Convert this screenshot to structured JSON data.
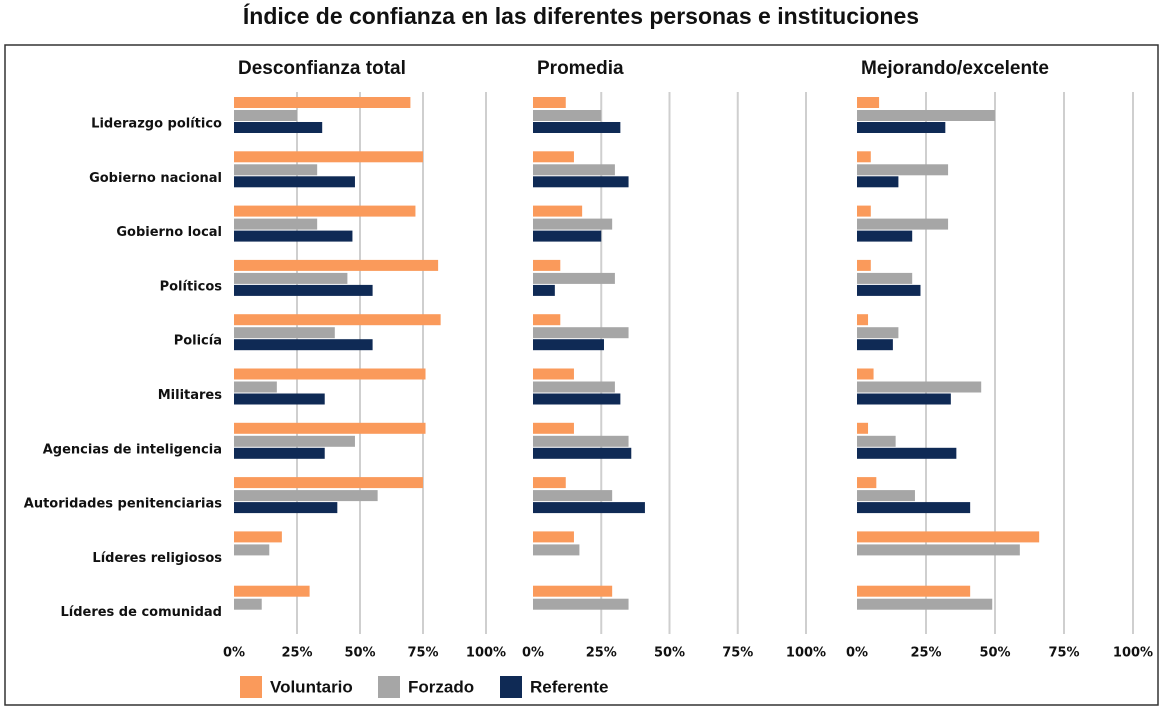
{
  "chart_data": {
    "type": "bar",
    "orientation": "horizontal",
    "title": "Índice de confianza en las diferentes personas e instituciones",
    "categories": [
      "Liderazgo político",
      "Gobierno nacional",
      "Gobierno local",
      "Políticos",
      "Policía",
      "Militares",
      "Agencias de inteligencia",
      "Autoridades penitenciarias",
      "Líderes religiosos",
      "Líderes de comunidad"
    ],
    "series": [
      {
        "name": "Voluntario",
        "color": "#fa9a5b"
      },
      {
        "name": "Forzado",
        "color": "#a6a6a6"
      },
      {
        "name": "Referente",
        "color": "#0f2a55"
      }
    ],
    "xlim": [
      0,
      100
    ],
    "xticks": [
      {
        "value": 0,
        "label": "0%"
      },
      {
        "value": 25,
        "label": "25%"
      },
      {
        "value": 50,
        "label": "50%"
      },
      {
        "value": 75,
        "label": "75%"
      },
      {
        "value": 100,
        "label": "100%"
      }
    ],
    "grid": true,
    "legend": "bottom",
    "panels": [
      {
        "title": "Desconfianza total",
        "values": [
          [
            70,
            75,
            72,
            81,
            82,
            76,
            76,
            75,
            19,
            30
          ],
          [
            25,
            33,
            33,
            45,
            40,
            17,
            48,
            57,
            14,
            11
          ],
          [
            35,
            48,
            47,
            55,
            55,
            36,
            36,
            41,
            null,
            null
          ]
        ]
      },
      {
        "title": "Promedia",
        "values": [
          [
            12,
            15,
            18,
            10,
            10,
            15,
            15,
            12,
            15,
            29
          ],
          [
            25,
            30,
            29,
            30,
            35,
            30,
            35,
            29,
            17,
            35
          ],
          [
            32,
            35,
            25,
            8,
            26,
            32,
            36,
            41,
            null,
            null
          ]
        ]
      },
      {
        "title": "Mejorando/excelente",
        "values": [
          [
            8,
            5,
            5,
            5,
            4,
            6,
            4,
            7,
            66,
            41
          ],
          [
            50,
            33,
            33,
            20,
            15,
            45,
            14,
            21,
            59,
            49
          ],
          [
            32,
            15,
            20,
            23,
            13,
            34,
            36,
            41,
            null,
            null
          ]
        ]
      }
    ]
  }
}
